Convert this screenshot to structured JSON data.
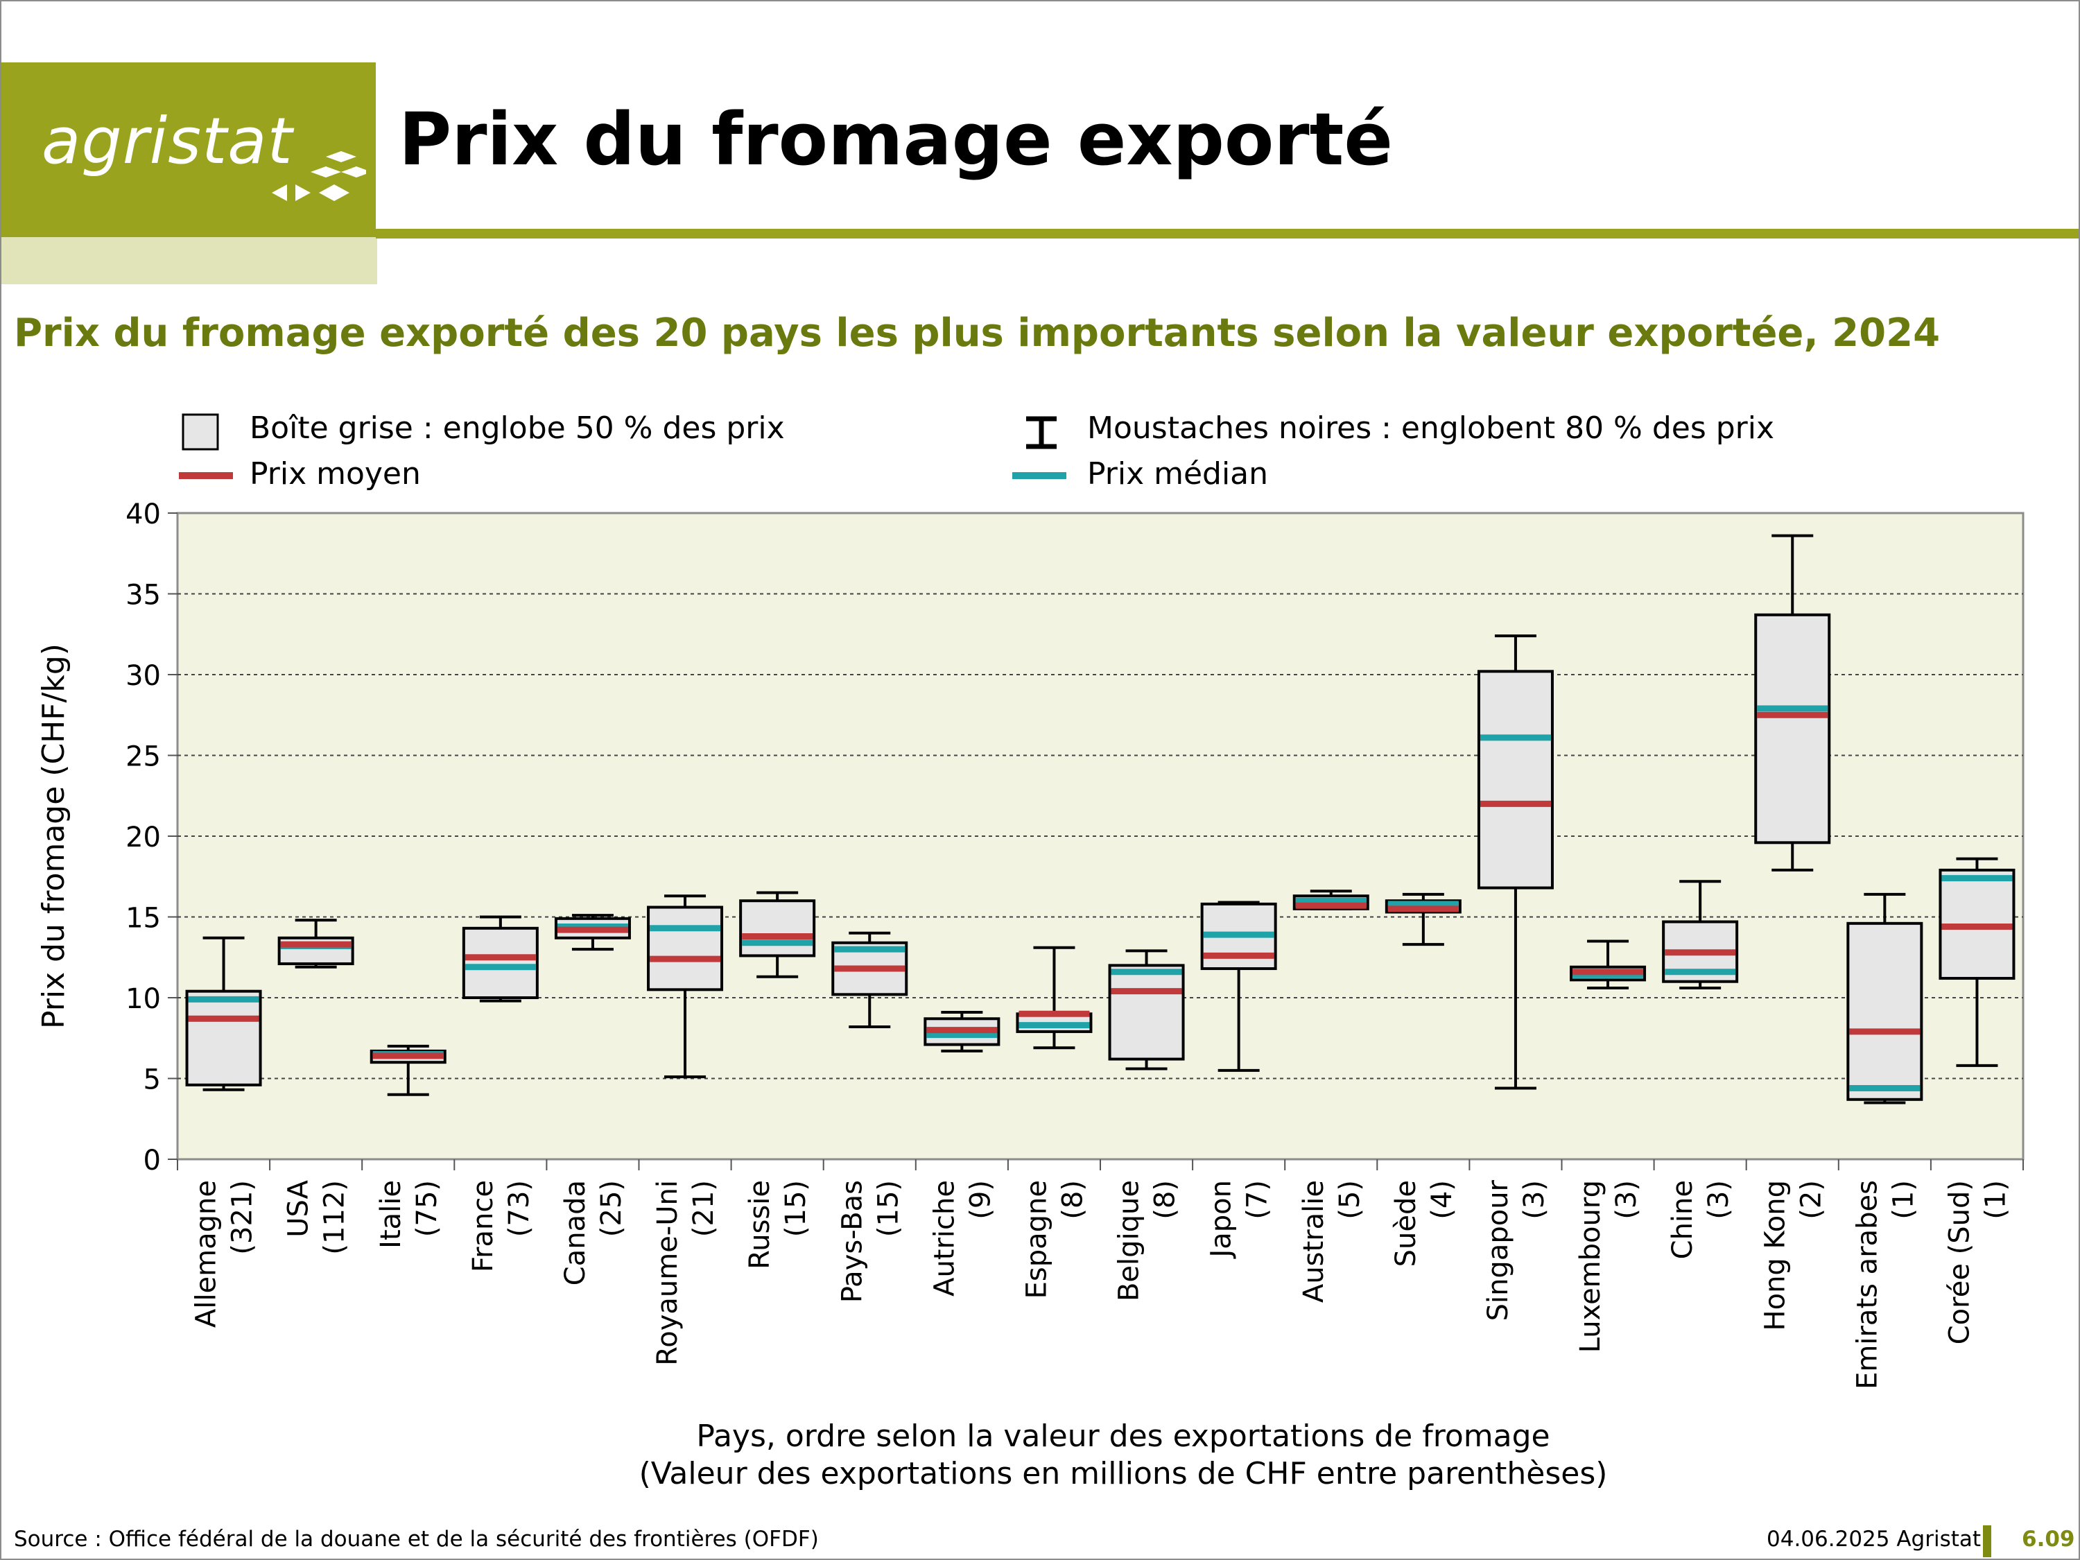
{
  "header": {
    "logo_text": "agristat",
    "title": "Prix du fromage exporté"
  },
  "colors": {
    "brand": "#9aa31e",
    "plot_background": "#f2f3e1",
    "box_fill": "#e6e6e6",
    "mean_line": "#c0393b",
    "median_line": "#1fa3a8"
  },
  "legend": {
    "box": "Boîte grise : englobe 50 % des prix",
    "whiskers": "Moustaches noires : englobent 80 % des prix",
    "mean": "Prix moyen",
    "median": "Prix médian"
  },
  "chart_data": {
    "type": "boxplot",
    "title": "Prix du fromage exporté des 20 pays les plus importants selon la valeur exportée, 2024",
    "ylabel": "Prix du fromage (CHF/kg)",
    "xlabel": "Pays, ordre selon la valeur des exportations de fromage",
    "xlabel_note": "(Valeur des exportations en millions de CHF entre parenthèses)",
    "ylim": [
      0,
      40
    ],
    "yticks": [
      0,
      5,
      10,
      15,
      20,
      25,
      30,
      35,
      40
    ],
    "grid": "horizontal dotted",
    "categories": [
      {
        "name": "Allemagne",
        "value": "(321)",
        "whisker_low": 4.3,
        "q1": 4.6,
        "median": 9.9,
        "mean": 8.7,
        "q3": 10.4,
        "whisker_high": 13.7
      },
      {
        "name": "USA",
        "value": "(112)",
        "whisker_low": 11.9,
        "q1": 12.1,
        "median": 13.2,
        "mean": 13.3,
        "q3": 13.7,
        "whisker_high": 14.8
      },
      {
        "name": "Italie",
        "value": "(75)",
        "whisker_low": 4.0,
        "q1": 6.0,
        "median": 6.5,
        "mean": 6.4,
        "q3": 6.7,
        "whisker_high": 7.0
      },
      {
        "name": "France",
        "value": "(73)",
        "whisker_low": 9.8,
        "q1": 10.0,
        "median": 11.9,
        "mean": 12.5,
        "q3": 14.3,
        "whisker_high": 15.0
      },
      {
        "name": "Canada",
        "value": "(25)",
        "whisker_low": 13.0,
        "q1": 13.7,
        "median": 14.4,
        "mean": 14.2,
        "q3": 14.9,
        "whisker_high": 15.1
      },
      {
        "name": "Royaume-Uni",
        "value": "(21)",
        "whisker_low": 5.1,
        "q1": 10.5,
        "median": 14.3,
        "mean": 12.4,
        "q3": 15.6,
        "whisker_high": 16.3
      },
      {
        "name": "Russie",
        "value": "(15)",
        "whisker_low": 11.3,
        "q1": 12.6,
        "median": 13.4,
        "mean": 13.8,
        "q3": 16.0,
        "whisker_high": 16.5
      },
      {
        "name": "Pays-Bas",
        "value": "(15)",
        "whisker_low": 8.2,
        "q1": 10.2,
        "median": 13.0,
        "mean": 11.8,
        "q3": 13.4,
        "whisker_high": 14.0
      },
      {
        "name": "Autriche",
        "value": "(9)",
        "whisker_low": 6.7,
        "q1": 7.1,
        "median": 7.7,
        "mean": 8.0,
        "q3": 8.7,
        "whisker_high": 9.1
      },
      {
        "name": "Espagne",
        "value": "(8)",
        "whisker_low": 6.9,
        "q1": 7.9,
        "median": 8.3,
        "mean": 9.0,
        "q3": 9.0,
        "whisker_high": 13.1
      },
      {
        "name": "Belgique",
        "value": "(8)",
        "whisker_low": 5.6,
        "q1": 6.2,
        "median": 11.6,
        "mean": 10.4,
        "q3": 12.0,
        "whisker_high": 12.9
      },
      {
        "name": "Japon",
        "value": "(7)",
        "whisker_low": 5.5,
        "q1": 11.8,
        "median": 13.9,
        "mean": 12.6,
        "q3": 15.8,
        "whisker_high": 15.9
      },
      {
        "name": "Australie",
        "value": "(5)",
        "whisker_low": 15.5,
        "q1": 15.5,
        "median": 16.0,
        "mean": 15.7,
        "q3": 16.3,
        "whisker_high": 16.6
      },
      {
        "name": "Suède",
        "value": "(4)",
        "whisker_low": 13.3,
        "q1": 15.3,
        "median": 15.8,
        "mean": 15.5,
        "q3": 16.0,
        "whisker_high": 16.4
      },
      {
        "name": "Singapour",
        "value": "(3)",
        "whisker_low": 4.4,
        "q1": 16.8,
        "median": 26.1,
        "mean": 22.0,
        "q3": 30.2,
        "whisker_high": 32.4
      },
      {
        "name": "Luxembourg",
        "value": "(3)",
        "whisker_low": 10.6,
        "q1": 11.1,
        "median": 11.4,
        "mean": 11.6,
        "q3": 11.9,
        "whisker_high": 13.5
      },
      {
        "name": "Chine",
        "value": "(3)",
        "whisker_low": 10.6,
        "q1": 11.0,
        "median": 11.6,
        "mean": 12.8,
        "q3": 14.7,
        "whisker_high": 17.2
      },
      {
        "name": "Hong Kong",
        "value": "(2)",
        "whisker_low": 17.9,
        "q1": 19.6,
        "median": 27.9,
        "mean": 27.5,
        "q3": 33.7,
        "whisker_high": 38.6
      },
      {
        "name": "Emirats arabes",
        "value": "(1)",
        "whisker_low": 3.5,
        "q1": 3.7,
        "median": 4.4,
        "mean": 7.9,
        "q3": 14.6,
        "whisker_high": 16.4
      },
      {
        "name": "Corée (Sud)",
        "value": "(1)",
        "whisker_low": 5.8,
        "q1": 11.2,
        "median": 17.4,
        "mean": 14.4,
        "q3": 17.9,
        "whisker_high": 18.6
      }
    ]
  },
  "footer": {
    "source": "Source : Office fédéral de la douane et de la sécurité des frontières (OFDF)",
    "date": "04.06.2025 Agristat",
    "page": "6.09"
  }
}
